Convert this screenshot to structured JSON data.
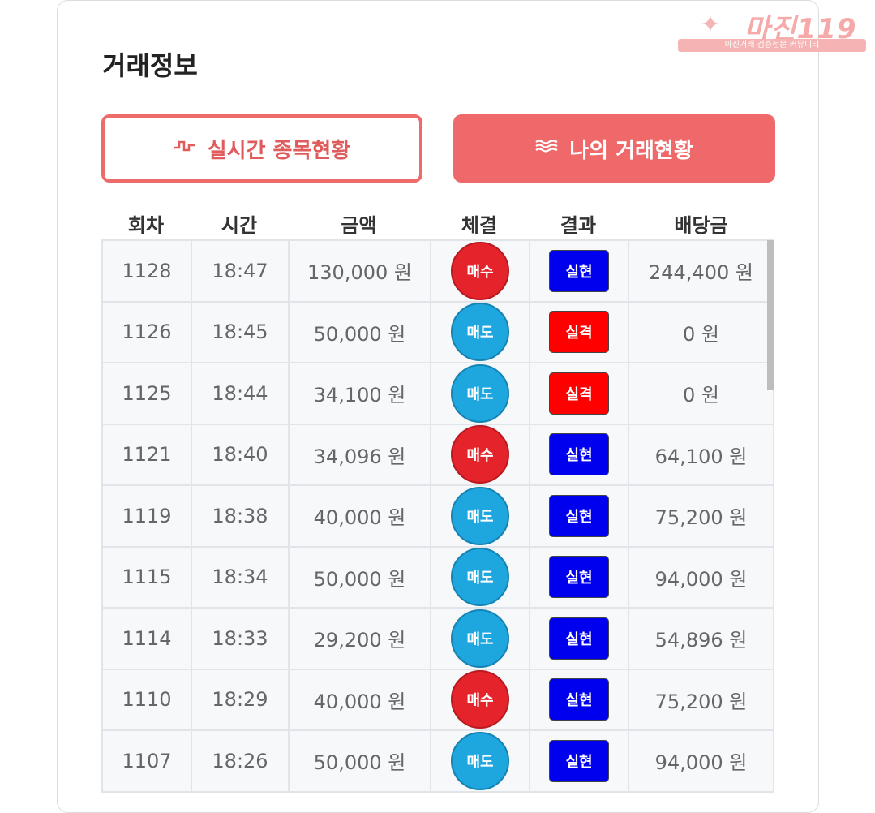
{
  "logo": {
    "brand": "마진119",
    "tagline": "마진거래 검증전문 커뮤니티"
  },
  "page": {
    "title": "거래정보"
  },
  "buttons": {
    "live": {
      "icon": "pulse-icon",
      "label": "실시간 종목현황"
    },
    "mine": {
      "icon": "waves-icon",
      "label": "나의 거래현황"
    }
  },
  "table": {
    "headers": [
      "회차",
      "시간",
      "금액",
      "체결",
      "결과",
      "배당금"
    ],
    "rows": [
      {
        "round": "1128",
        "time": "18:47",
        "amount": "130,000 원",
        "trade": "매수",
        "result": "실현",
        "payout": "244,400 원"
      },
      {
        "round": "1126",
        "time": "18:45",
        "amount": "50,000 원",
        "trade": "매도",
        "result": "실격",
        "payout": "0 원"
      },
      {
        "round": "1125",
        "time": "18:44",
        "amount": "34,100 원",
        "trade": "매도",
        "result": "실격",
        "payout": "0 원"
      },
      {
        "round": "1121",
        "time": "18:40",
        "amount": "34,096 원",
        "trade": "매수",
        "result": "실현",
        "payout": "64,100 원"
      },
      {
        "round": "1119",
        "time": "18:38",
        "amount": "40,000 원",
        "trade": "매도",
        "result": "실현",
        "payout": "75,200 원"
      },
      {
        "round": "1115",
        "time": "18:34",
        "amount": "50,000 원",
        "trade": "매도",
        "result": "실현",
        "payout": "94,000 원"
      },
      {
        "round": "1114",
        "time": "18:33",
        "amount": "29,200 원",
        "trade": "매도",
        "result": "실현",
        "payout": "54,896 원"
      },
      {
        "round": "1110",
        "time": "18:29",
        "amount": "40,000 원",
        "trade": "매수",
        "result": "실현",
        "payout": "75,200 원"
      },
      {
        "round": "1107",
        "time": "18:26",
        "amount": "50,000 원",
        "trade": "매도",
        "result": "실현",
        "payout": "94,000 원"
      }
    ]
  },
  "colors": {
    "accent": "#f0696a",
    "buy": "#e5232a",
    "sell": "#1ea6df",
    "realized": "#0000ee",
    "disqualified": "#ff0000"
  }
}
